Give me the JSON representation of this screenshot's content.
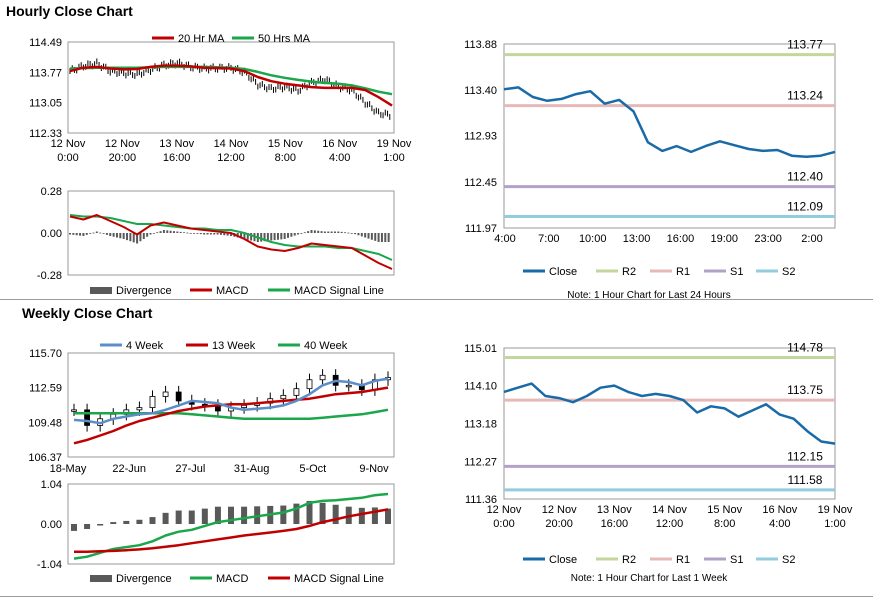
{
  "titles": {
    "hourly": "Hourly Close Chart",
    "weekly": "Weekly Close Chart"
  },
  "colors": {
    "ma20": "#c00000",
    "ma50": "#1aa64a",
    "close": "#1a6aa8",
    "r2": "#c3d69b",
    "r1": "#e6b9b8",
    "s1": "#b3a2c7",
    "s2": "#93cddd",
    "divergence": "#595959",
    "macd_red": "#c00000",
    "signal_green": "#1aa64a",
    "week4": "#5b8dc8"
  },
  "chart_data": [
    {
      "id": "hourly_price",
      "type": "line",
      "ylim": [
        112.33,
        114.49
      ],
      "yticks": [
        "114.49",
        "113.77",
        "113.05",
        "112.33"
      ],
      "xticks": [
        [
          "12 Nov",
          "0:00"
        ],
        [
          "12 Nov",
          "20:00"
        ],
        [
          "13 Nov",
          "16:00"
        ],
        [
          "14 Nov",
          "12:00"
        ],
        [
          "15 Nov",
          "8:00"
        ],
        [
          "16 Nov",
          "4:00"
        ],
        [
          "19 Nov",
          "1:00"
        ]
      ],
      "legend": [
        "20 Hr MA",
        "50 Hrs MA"
      ],
      "series": [
        {
          "name": "20 Hr MA",
          "values": [
            113.8,
            113.88,
            113.9,
            113.86,
            113.84,
            113.85,
            113.9,
            113.93,
            113.93,
            113.91,
            113.88,
            113.87,
            113.86,
            113.8,
            113.66,
            113.56,
            113.5,
            113.46,
            113.42,
            113.4,
            113.4,
            113.4,
            113.35,
            113.18,
            112.98
          ]
        },
        {
          "name": "50 Hrs MA",
          "values": [
            113.86,
            113.87,
            113.88,
            113.88,
            113.88,
            113.88,
            113.89,
            113.9,
            113.9,
            113.9,
            113.9,
            113.89,
            113.88,
            113.85,
            113.78,
            113.7,
            113.64,
            113.59,
            113.55,
            113.52,
            113.5,
            113.46,
            113.39,
            113.31,
            113.25
          ]
        },
        {
          "name": "Price",
          "values": [
            113.8,
            113.92,
            113.98,
            113.8,
            113.75,
            113.72,
            113.83,
            113.94,
            113.99,
            113.9,
            113.86,
            113.87,
            113.87,
            113.78,
            113.48,
            113.38,
            113.42,
            113.34,
            113.52,
            113.6,
            113.43,
            113.35,
            113.05,
            112.8,
            112.75
          ]
        }
      ]
    },
    {
      "id": "hourly_macd",
      "type": "bar",
      "ylim": [
        -0.28,
        0.28
      ],
      "yticks": [
        "0.28",
        "0.00",
        "-0.28"
      ],
      "legend": [
        "Divergence",
        "MACD",
        "MACD Signal Line"
      ],
      "series": [
        {
          "name": "MACD",
          "values": [
            0.11,
            0.09,
            0.12,
            0.08,
            0.04,
            -0.01,
            0.05,
            0.07,
            0.05,
            0.03,
            0.02,
            0.01,
            0.0,
            -0.04,
            -0.09,
            -0.11,
            -0.12,
            -0.1,
            -0.07,
            -0.08,
            -0.09,
            -0.1,
            -0.15,
            -0.2,
            -0.24
          ]
        },
        {
          "name": "MACD Signal Line",
          "values": [
            0.12,
            0.11,
            0.11,
            0.1,
            0.08,
            0.06,
            0.06,
            0.05,
            0.04,
            0.03,
            0.03,
            0.02,
            0.02,
            0.0,
            -0.03,
            -0.06,
            -0.08,
            -0.09,
            -0.09,
            -0.09,
            -0.1,
            -0.1,
            -0.12,
            -0.14,
            -0.18
          ]
        },
        {
          "name": "Divergence",
          "values": [
            -0.01,
            -0.02,
            0.01,
            -0.02,
            -0.04,
            -0.07,
            -0.01,
            0.02,
            0.01,
            0.0,
            -0.01,
            -0.01,
            -0.02,
            -0.04,
            -0.06,
            -0.05,
            -0.04,
            -0.01,
            0.02,
            0.01,
            0.01,
            0.0,
            -0.03,
            -0.06,
            -0.06
          ]
        }
      ]
    },
    {
      "id": "hourly_24h",
      "type": "line",
      "ylim": [
        111.97,
        113.88
      ],
      "yticks": [
        "113.88",
        "113.40",
        "112.93",
        "112.45",
        "111.97"
      ],
      "xticks": [
        "4:00",
        "7:00",
        "10:00",
        "13:00",
        "16:00",
        "19:00",
        "23:00",
        "2:00"
      ],
      "levels": {
        "R2": "113.77",
        "R1": "113.24",
        "S1": "112.40",
        "S2": "112.09"
      },
      "level_values": [
        113.77,
        113.24,
        112.4,
        112.09
      ],
      "legend": [
        "Close",
        "R2",
        "R1",
        "S1",
        "S2"
      ],
      "note": "Note: 1 Hour Chart for Last 24 Hours",
      "series": [
        {
          "name": "Close",
          "values": [
            113.41,
            113.43,
            113.33,
            113.29,
            113.31,
            113.36,
            113.39,
            113.26,
            113.3,
            113.18,
            112.86,
            112.77,
            112.82,
            112.76,
            112.82,
            112.87,
            112.83,
            112.79,
            112.77,
            112.78,
            112.72,
            112.71,
            112.72,
            112.76
          ]
        }
      ]
    },
    {
      "id": "weekly_price",
      "type": "line",
      "ylim": [
        106.37,
        115.7
      ],
      "yticks": [
        "115.70",
        "112.59",
        "109.48",
        "106.37"
      ],
      "xticks": [
        "18-May",
        "22-Jun",
        "27-Jul",
        "31-Aug",
        "5-Oct",
        "9-Nov"
      ],
      "legend": [
        "4 Week",
        "13 Week",
        "40 Week"
      ],
      "series": [
        {
          "name": "4 Week",
          "values": [
            109.7,
            109.6,
            109.4,
            109.8,
            110.0,
            110.2,
            110.3,
            110.6,
            111.0,
            111.4,
            111.3,
            111.2,
            110.8,
            110.6,
            110.7,
            110.8,
            111.0,
            111.4,
            112.0,
            112.8,
            113.2,
            113.1,
            112.8,
            113.2,
            113.4
          ]
        },
        {
          "name": "13 Week",
          "values": [
            107.6,
            107.9,
            108.3,
            108.7,
            109.2,
            109.6,
            109.9,
            110.2,
            110.5,
            110.7,
            110.9,
            111.0,
            111.1,
            111.1,
            111.2,
            111.3,
            111.4,
            111.5,
            111.6,
            111.8,
            112.0,
            112.1,
            112.2,
            112.4,
            112.6
          ]
        },
        {
          "name": "40 Week",
          "values": [
            110.3,
            110.3,
            110.3,
            110.3,
            110.3,
            110.3,
            110.3,
            110.3,
            110.3,
            110.2,
            110.1,
            110.0,
            109.9,
            109.8,
            109.8,
            109.8,
            109.8,
            109.8,
            109.8,
            109.9,
            110.0,
            110.1,
            110.2,
            110.4,
            110.6
          ]
        },
        {
          "name": "Price",
          "values": [
            110.6,
            109.2,
            109.8,
            110.2,
            110.6,
            110.8,
            111.8,
            112.2,
            111.4,
            111.1,
            111.0,
            110.5,
            110.8,
            111.0,
            111.2,
            111.6,
            111.9,
            112.5,
            113.3,
            113.7,
            112.8,
            112.8,
            112.4,
            113.3,
            113.5
          ]
        }
      ]
    },
    {
      "id": "weekly_macd",
      "type": "bar",
      "ylim": [
        -1.04,
        1.04
      ],
      "yticks": [
        "1.04",
        "0.00",
        "-1.04"
      ],
      "legend": [
        "Divergence",
        "MACD",
        "MACD Signal Line"
      ],
      "series": [
        {
          "name": "MACD",
          "values": [
            -0.9,
            -0.85,
            -0.75,
            -0.65,
            -0.6,
            -0.55,
            -0.45,
            -0.3,
            -0.2,
            -0.15,
            -0.05,
            0.05,
            0.1,
            0.15,
            0.2,
            0.25,
            0.3,
            0.4,
            0.55,
            0.6,
            0.62,
            0.65,
            0.68,
            0.75,
            0.78
          ]
        },
        {
          "name": "MACD Signal Line",
          "values": [
            -0.72,
            -0.72,
            -0.71,
            -0.7,
            -0.68,
            -0.66,
            -0.63,
            -0.59,
            -0.55,
            -0.5,
            -0.45,
            -0.4,
            -0.35,
            -0.3,
            -0.26,
            -0.22,
            -0.18,
            -0.13,
            -0.05,
            0.05,
            0.12,
            0.2,
            0.26,
            0.32,
            0.38
          ]
        },
        {
          "name": "Divergence",
          "values": [
            -0.18,
            -0.13,
            -0.04,
            0.05,
            0.08,
            0.11,
            0.18,
            0.29,
            0.35,
            0.35,
            0.4,
            0.45,
            0.45,
            0.45,
            0.46,
            0.47,
            0.48,
            0.53,
            0.6,
            0.55,
            0.5,
            0.45,
            0.42,
            0.43,
            0.4
          ]
        }
      ]
    },
    {
      "id": "weekly_1w",
      "type": "line",
      "ylim": [
        111.36,
        115.01
      ],
      "yticks": [
        "115.01",
        "114.10",
        "113.18",
        "112.27",
        "111.36"
      ],
      "xticks": [
        [
          "12 Nov",
          "0:00"
        ],
        [
          "12 Nov",
          "20:00"
        ],
        [
          "13 Nov",
          "16:00"
        ],
        [
          "14 Nov",
          "12:00"
        ],
        [
          "15 Nov",
          "8:00"
        ],
        [
          "16 Nov",
          "4:00"
        ],
        [
          "19 Nov",
          "1:00"
        ]
      ],
      "levels": {
        "R2": "114.78",
        "R1": "113.75",
        "S1": "112.15",
        "S2": "111.58"
      },
      "level_values": [
        114.78,
        113.75,
        112.15,
        111.58
      ],
      "legend": [
        "Close",
        "R2",
        "R1",
        "S1",
        "S2"
      ],
      "note": "Note: 1 Hour Chart for Last 1 Week",
      "series": [
        {
          "name": "Close",
          "values": [
            113.95,
            114.05,
            114.15,
            113.85,
            113.8,
            113.7,
            113.85,
            114.05,
            114.1,
            113.95,
            113.85,
            113.9,
            113.85,
            113.75,
            113.45,
            113.6,
            113.55,
            113.35,
            113.5,
            113.65,
            113.4,
            113.3,
            113.0,
            112.75,
            112.7
          ]
        }
      ]
    }
  ]
}
